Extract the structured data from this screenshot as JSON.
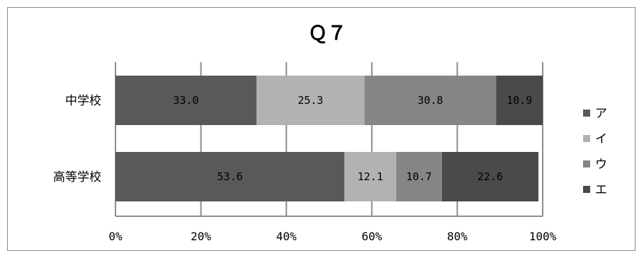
{
  "chart_data": {
    "type": "bar",
    "orientation": "horizontal",
    "stacked": "percent",
    "title": "Ｑ７",
    "categories": [
      "中学校",
      "高等学校"
    ],
    "series": [
      {
        "name": "ア",
        "values": [
          33.0,
          53.6
        ],
        "labels": [
          "33.0",
          "53.6"
        ],
        "color": "#595959"
      },
      {
        "name": "イ",
        "values": [
          25.3,
          12.1
        ],
        "labels": [
          "25.3",
          "12.1"
        ],
        "color": "#b2b2b2"
      },
      {
        "name": "ウ",
        "values": [
          30.8,
          10.7
        ],
        "labels": [
          "30.8",
          "10.7"
        ],
        "color": "#858585"
      },
      {
        "name": "エ",
        "values": [
          10.9,
          22.6
        ],
        "labels": [
          "10.9",
          "22.6"
        ],
        "color": "#4a4a4a"
      }
    ],
    "xlim": [
      0,
      100
    ],
    "xticks": [
      "0%",
      "20%",
      "40%",
      "60%",
      "80%",
      "100%"
    ],
    "grid": "vertical",
    "legend_position": "right"
  }
}
